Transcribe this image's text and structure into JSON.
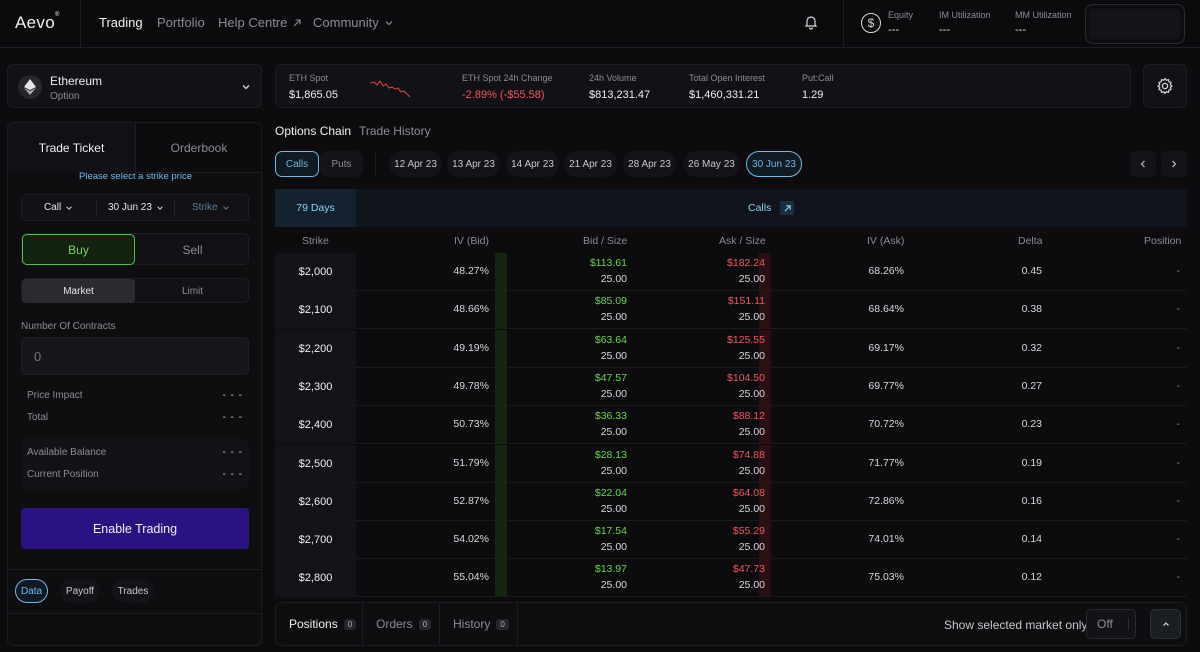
{
  "nav": {
    "logo": "Aevo",
    "logo_mark": "®",
    "items": [
      "Trading",
      "Portfolio",
      "Help Centre",
      "Community"
    ],
    "equity_label": "Equity",
    "equity_value": "---",
    "im_label": "IM Utilization",
    "im_value": "---",
    "mm_label": "MM Utilization",
    "mm_value": "---"
  },
  "market": {
    "name": "Ethereum",
    "type": "Option"
  },
  "stats": {
    "eth_spot_label": "ETH Spot",
    "eth_spot_value": "$1,865.05",
    "change_label": "ETH Spot 24h Change",
    "change_value": "-2.89% (-$55.58)",
    "volume_label": "24h Volume",
    "volume_value": "$813,231.47",
    "oi_label": "Total Open Interest",
    "oi_value": "$1,460,331.21",
    "pc_label": "Put:Call",
    "pc_value": "1.29"
  },
  "ticket": {
    "tab_trade": "Trade Ticket",
    "tab_orderbook": "Orderbook",
    "hint": "Please select a strike price",
    "type_select": "Call",
    "expiry_select": "30 Jun 23",
    "strike_select": "Strike",
    "buy": "Buy",
    "sell": "Sell",
    "market": "Market",
    "limit": "Limit",
    "contracts_label": "Number Of Contracts",
    "contracts_placeholder": "0",
    "price_impact_label": "Price Impact",
    "price_impact_value": "- - -",
    "total_label": "Total",
    "total_value": "- - -",
    "available_label": "Available Balance",
    "available_value": "- - -",
    "position_label": "Current Position",
    "position_value": "- - -",
    "enable": "Enable Trading",
    "pills": [
      "Data",
      "Payoff",
      "Trades"
    ]
  },
  "chain": {
    "tab_options": "Options Chain",
    "tab_history": "Trade History",
    "calls": "Calls",
    "puts": "Puts",
    "dates": [
      "12 Apr 23",
      "13 Apr 23",
      "14 Apr 23",
      "21 Apr 23",
      "28 Apr 23",
      "26 May 23",
      "30 Jun 23"
    ],
    "days": "79 Days",
    "side_label": "Calls",
    "headers": [
      "Strike",
      "IV (Bid)",
      "Bid / Size",
      "Ask / Size",
      "IV (Ask)",
      "Delta",
      "Position"
    ],
    "rows": [
      {
        "strike": "$2,000",
        "iv_bid": "48.27%",
        "bid": "$113.61",
        "bid_size": "25.00",
        "ask": "$182.24",
        "ask_size": "25.00",
        "iv_ask": "68.26%",
        "delta": "0.45",
        "position": "-"
      },
      {
        "strike": "$2,100",
        "iv_bid": "48.66%",
        "bid": "$85.09",
        "bid_size": "25.00",
        "ask": "$151.11",
        "ask_size": "25.00",
        "iv_ask": "68.64%",
        "delta": "0.38",
        "position": "-"
      },
      {
        "strike": "$2,200",
        "iv_bid": "49.19%",
        "bid": "$63.64",
        "bid_size": "25.00",
        "ask": "$125.55",
        "ask_size": "25.00",
        "iv_ask": "69.17%",
        "delta": "0.32",
        "position": "-"
      },
      {
        "strike": "$2,300",
        "iv_bid": "49.78%",
        "bid": "$47.57",
        "bid_size": "25.00",
        "ask": "$104.50",
        "ask_size": "25.00",
        "iv_ask": "69.77%",
        "delta": "0.27",
        "position": "-"
      },
      {
        "strike": "$2,400",
        "iv_bid": "50.73%",
        "bid": "$36.33",
        "bid_size": "25.00",
        "ask": "$88.12",
        "ask_size": "25.00",
        "iv_ask": "70.72%",
        "delta": "0.23",
        "position": "-"
      },
      {
        "strike": "$2,500",
        "iv_bid": "51.79%",
        "bid": "$28.13",
        "bid_size": "25.00",
        "ask": "$74.88",
        "ask_size": "25.00",
        "iv_ask": "71.77%",
        "delta": "0.19",
        "position": "-"
      },
      {
        "strike": "$2,600",
        "iv_bid": "52.87%",
        "bid": "$22.04",
        "bid_size": "25.00",
        "ask": "$64.08",
        "ask_size": "25.00",
        "iv_ask": "72.86%",
        "delta": "0.16",
        "position": "-"
      },
      {
        "strike": "$2,700",
        "iv_bid": "54.02%",
        "bid": "$17.54",
        "bid_size": "25.00",
        "ask": "$55.29",
        "ask_size": "25.00",
        "iv_ask": "74.01%",
        "delta": "0.14",
        "position": "-"
      },
      {
        "strike": "$2,800",
        "iv_bid": "55.04%",
        "bid": "$13.97",
        "bid_size": "25.00",
        "ask": "$47.73",
        "ask_size": "25.00",
        "iv_ask": "75.03%",
        "delta": "0.12",
        "position": "-"
      }
    ]
  },
  "bottom": {
    "tabs": [
      {
        "label": "Positions",
        "count": "0"
      },
      {
        "label": "Orders",
        "count": "0"
      },
      {
        "label": "History",
        "count": "0"
      }
    ],
    "show_selected": "Show selected market only",
    "toggle_value": "Off"
  },
  "colors": {
    "accent": "#6fb8e8",
    "bid_green": "#67d64c",
    "ask_red": "#f0575c",
    "enable_button": "#2b1282"
  },
  "icons": [
    "bell-icon",
    "dollar-circle-icon",
    "ethereum-icon",
    "chevron-down-icon",
    "sparkline-icon",
    "gear-icon",
    "chevron-left-icon",
    "chevron-right-icon",
    "arrow-up-right-icon",
    "chevron-up-icon"
  ]
}
